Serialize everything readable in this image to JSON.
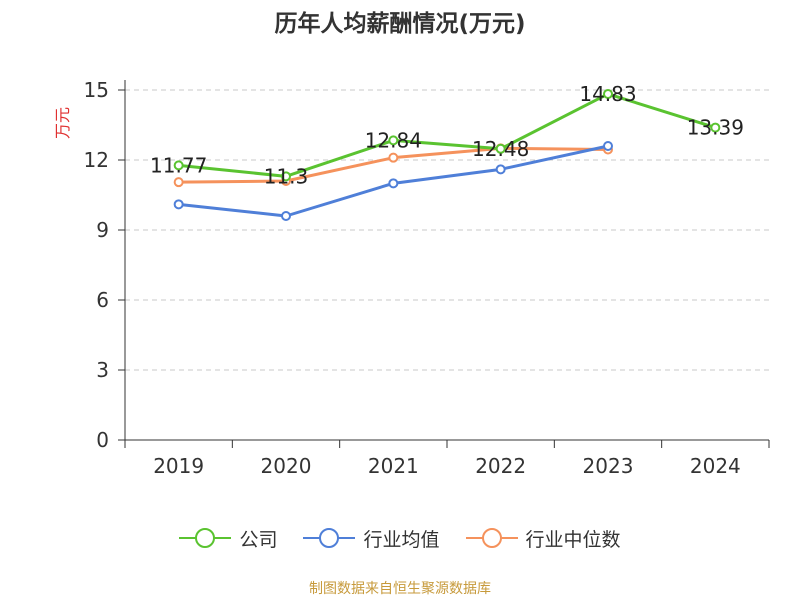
{
  "chart_data": {
    "type": "line",
    "title": "历年人均薪酬情况(万元)",
    "ylabel": "万元",
    "xlabel": "",
    "categories": [
      "2019",
      "2020",
      "2021",
      "2022",
      "2023",
      "2024"
    ],
    "ylim": [
      0,
      15
    ],
    "yticks": [
      0,
      3,
      6,
      9,
      12,
      15
    ],
    "grid": "horizontal-dashed",
    "legend_position": "bottom",
    "series": [
      {
        "name": "公司",
        "color": "#5ac330",
        "values": [
          11.77,
          11.3,
          12.84,
          12.48,
          14.83,
          13.39
        ],
        "labels": [
          "11.77",
          "11.3",
          "12.84",
          "12.48",
          "14.83",
          "13.39"
        ]
      },
      {
        "name": "行业均值",
        "color": "#4f7fd8",
        "values": [
          10.1,
          9.6,
          11.0,
          11.6,
          12.6,
          null
        ]
      },
      {
        "name": "行业中位数",
        "color": "#f5925c",
        "values": [
          11.05,
          11.1,
          12.1,
          12.5,
          12.45,
          null
        ]
      }
    ]
  },
  "source": "制图数据来自恒生聚源数据库",
  "colors": {
    "axis": "#333333",
    "grid": "#c8c8c8",
    "ylabel": "#e03030"
  }
}
